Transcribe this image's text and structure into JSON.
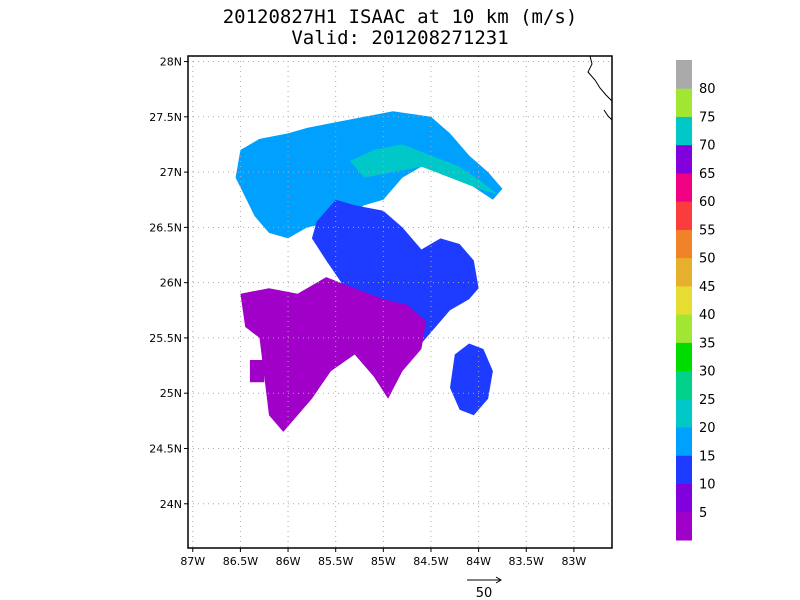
{
  "title": "20120827H1 ISAAC at 10 km (m/s)",
  "subtitle": "Valid: 201208271231",
  "map": {
    "lon_range": [
      -87.05,
      -82.6
    ],
    "lat_range": [
      23.6,
      28.05
    ],
    "lon_ticks": [
      -87,
      -86.5,
      -86,
      -85.5,
      -85,
      -84.5,
      -84,
      -83.5,
      -83
    ],
    "lon_tick_labels": [
      "87W",
      "86.5W",
      "86W",
      "85.5W",
      "85W",
      "84.5W",
      "84W",
      "83.5W",
      "83W"
    ],
    "lat_ticks": [
      24,
      24.5,
      25,
      25.5,
      26,
      26.5,
      27,
      27.5,
      28
    ],
    "lat_tick_labels": [
      "24N",
      "24.5N",
      "25N",
      "25.5N",
      "26N",
      "26.5N",
      "27N",
      "27.5N",
      "28N"
    ],
    "grid": "dotted"
  },
  "colorbar": {
    "colors": [
      "#a000c8",
      "#8200dc",
      "#1e3cff",
      "#00a0ff",
      "#00c8c8",
      "#00d28c",
      "#00dc00",
      "#a0e632",
      "#e6dc32",
      "#e6af2d",
      "#f08228",
      "#fa3c3c",
      "#f00082",
      "#8200dc",
      "#00c8c8",
      "#a0e632",
      "#aaaaaa"
    ],
    "labels": [
      "5",
      "10",
      "15",
      "20",
      "25",
      "30",
      "35",
      "40",
      "45",
      "50",
      "55",
      "60",
      "65",
      "70",
      "75",
      "80"
    ]
  },
  "reference_vector": {
    "label": "50"
  },
  "wind_field": {
    "type": "heatmap",
    "units": "m/s",
    "regions": [
      {
        "name": "",
        "color_index": 3,
        "lon": [
          -86.55,
          -86.5,
          -86.3,
          -86.0,
          -85.8,
          -85.5,
          -85.2,
          -84.9,
          -84.5,
          -84.3,
          -84.1,
          -83.9,
          -83.75,
          -83.85,
          -84.2,
          -84.6,
          -84.8,
          -85.0,
          -85.2,
          -85.5,
          -85.8,
          -86.0,
          -86.2,
          -86.35
        ],
        "lat": [
          26.95,
          27.2,
          27.3,
          27.35,
          27.4,
          27.45,
          27.5,
          27.55,
          27.5,
          27.35,
          27.15,
          27.0,
          26.85,
          26.75,
          26.95,
          27.05,
          26.95,
          26.75,
          26.7,
          26.55,
          26.5,
          26.4,
          26.45,
          26.6
        ]
      },
      {
        "name": "",
        "color_index": 4,
        "lon": [
          -85.35,
          -85.1,
          -84.8,
          -84.5,
          -84.2,
          -83.95,
          -83.8,
          -84.0,
          -84.3,
          -84.6,
          -84.9,
          -85.2
        ],
        "lat": [
          27.1,
          27.2,
          27.25,
          27.15,
          27.05,
          26.9,
          26.8,
          26.85,
          26.95,
          27.05,
          27.0,
          26.95
        ]
      },
      {
        "name": "",
        "color_index": 2,
        "lon": [
          -85.7,
          -85.5,
          -85.3,
          -85.0,
          -84.8,
          -84.6,
          -84.4,
          -84.2,
          -84.05,
          -84.0,
          -84.1,
          -84.3,
          -84.45,
          -84.6,
          -84.8,
          -85.1,
          -85.4,
          -85.6,
          -85.75
        ],
        "lat": [
          26.55,
          26.75,
          26.7,
          26.65,
          26.5,
          26.3,
          26.4,
          26.35,
          26.2,
          25.95,
          25.85,
          25.75,
          25.6,
          25.45,
          25.5,
          25.7,
          25.95,
          26.2,
          26.4
        ]
      },
      {
        "name": "",
        "color_index": 2,
        "lon": [
          -84.25,
          -84.1,
          -83.95,
          -83.85,
          -83.9,
          -84.05,
          -84.2,
          -84.3
        ],
        "lat": [
          25.35,
          25.45,
          25.4,
          25.2,
          24.95,
          24.8,
          24.85,
          25.05
        ]
      },
      {
        "name": "",
        "color_index": 0,
        "lon": [
          -86.5,
          -86.2,
          -85.9,
          -85.6,
          -85.3,
          -85.0,
          -84.75,
          -84.55,
          -84.6,
          -84.8,
          -84.95,
          -85.1,
          -85.3,
          -85.55,
          -85.75,
          -85.95,
          -86.05,
          -86.2,
          -86.3,
          -86.45
        ],
        "lat": [
          25.9,
          25.95,
          25.9,
          26.05,
          25.95,
          25.85,
          25.8,
          25.65,
          25.4,
          25.2,
          24.95,
          25.15,
          25.35,
          25.2,
          24.95,
          24.75,
          24.65,
          24.8,
          25.5,
          25.6
        ]
      },
      {
        "name": "",
        "color_index": 0,
        "lon": [
          -86.4,
          -86.25,
          -86.25,
          -86.4
        ],
        "lat": [
          25.3,
          25.3,
          25.1,
          25.1
        ]
      }
    ]
  }
}
